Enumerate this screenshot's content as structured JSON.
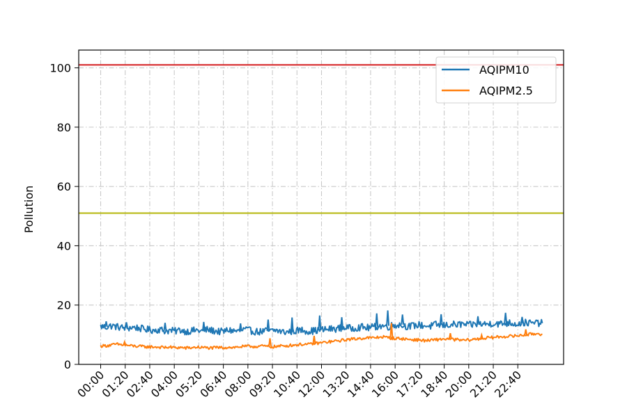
{
  "chart_data": {
    "type": "line",
    "title": "",
    "xlabel": "",
    "ylabel": "Pollution",
    "ylim": [
      0,
      106
    ],
    "y_ticks": [
      0,
      20,
      40,
      60,
      80,
      100
    ],
    "x_tick_labels": [
      "00:00",
      "01:20",
      "02:40",
      "04:00",
      "05:20",
      "06:40",
      "08:00",
      "09:20",
      "10:40",
      "12:00",
      "13:20",
      "14:40",
      "16:00",
      "17:20",
      "18:40",
      "20:00",
      "21:20",
      "22:40"
    ],
    "grid": true,
    "legend_position": "top-right",
    "thresholds": [
      {
        "value": 101,
        "color": "#d62728"
      },
      {
        "value": 51,
        "color": "#bcbd22"
      }
    ],
    "series": [
      {
        "name": "AQIPM10",
        "color": "#1f77b4",
        "values": [
          12.8,
          12.6,
          13.0,
          12.7,
          12.4,
          12.2,
          12.5,
          12.3,
          11.9,
          11.7,
          11.5,
          11.8,
          11.3,
          11.4,
          11.2,
          11.6,
          11.1,
          11.3,
          11.5,
          11.2,
          11.7,
          11.4,
          11.1,
          11.0,
          11.6,
          11.3,
          11.2,
          11.8,
          11.4,
          11.1,
          11.0,
          11.3,
          11.2,
          11.5,
          11.0,
          10.9,
          11.2,
          11.4,
          11.6,
          11.2,
          11.3,
          11.5,
          11.7,
          11.9,
          12.0,
          12.2,
          12.5,
          12.1,
          12.4,
          12.6,
          12.3,
          12.5,
          12.8,
          13.0,
          12.7,
          13.2,
          13.4,
          13.0,
          12.8,
          13.1,
          13.3,
          13.0,
          12.9,
          13.4,
          13.1,
          13.2,
          13.5,
          13.3,
          13.6,
          13.2,
          13.4,
          13.8,
          13.5,
          13.7,
          13.9,
          13.6,
          13.8,
          14.0,
          13.7,
          13.9,
          14.1,
          13.8,
          14.0,
          13.9
        ],
        "spikes": [
          [
            0.3,
            14.5
          ],
          [
            1.4,
            14.2
          ],
          [
            3.5,
            14.0
          ],
          [
            5.6,
            14.3
          ],
          [
            7.6,
            13.8
          ],
          [
            9.1,
            15.1
          ],
          [
            10.4,
            15.8
          ],
          [
            11.9,
            16.5
          ],
          [
            13.1,
            15.9
          ],
          [
            15.0,
            17.2
          ],
          [
            15.6,
            18.2
          ],
          [
            16.4,
            16.8
          ],
          [
            18.5,
            16.9
          ],
          [
            20.5,
            16.2
          ],
          [
            22.0,
            17.4
          ],
          [
            22.9,
            16.0
          ]
        ]
      },
      {
        "name": "AQIPM2.5",
        "color": "#ff7f0e",
        "values": [
          6.2,
          6.3,
          6.5,
          6.8,
          6.6,
          6.4,
          6.2,
          6.1,
          6.0,
          5.9,
          5.9,
          5.8,
          5.7,
          5.8,
          5.6,
          5.7,
          5.5,
          5.6,
          5.8,
          5.7,
          5.6,
          5.5,
          5.7,
          5.6,
          5.8,
          5.7,
          5.9,
          6.0,
          6.1,
          6.0,
          6.2,
          6.1,
          5.9,
          6.0,
          6.2,
          6.3,
          6.5,
          6.6,
          6.8,
          6.7,
          7.0,
          7.2,
          7.4,
          7.6,
          7.8,
          8.0,
          8.3,
          8.5,
          8.6,
          8.8,
          9.0,
          8.9,
          9.1,
          9.3,
          9.0,
          8.8,
          8.7,
          8.6,
          8.4,
          8.3,
          8.2,
          8.0,
          8.1,
          8.3,
          8.5,
          8.6,
          8.4,
          8.3,
          8.1,
          8.2,
          8.4,
          8.6,
          8.8,
          9.0,
          9.1,
          9.3,
          9.4,
          9.5,
          9.6,
          9.8,
          10.0,
          10.2,
          10.4,
          10.1
        ],
        "spikes": [
          [
            1.3,
            7.6
          ],
          [
            9.2,
            8.8
          ],
          [
            11.6,
            9.6
          ],
          [
            15.8,
            13.9
          ],
          [
            19.0,
            10.5
          ],
          [
            20.7,
            9.9
          ],
          [
            23.1,
            11.8
          ]
        ]
      }
    ]
  }
}
